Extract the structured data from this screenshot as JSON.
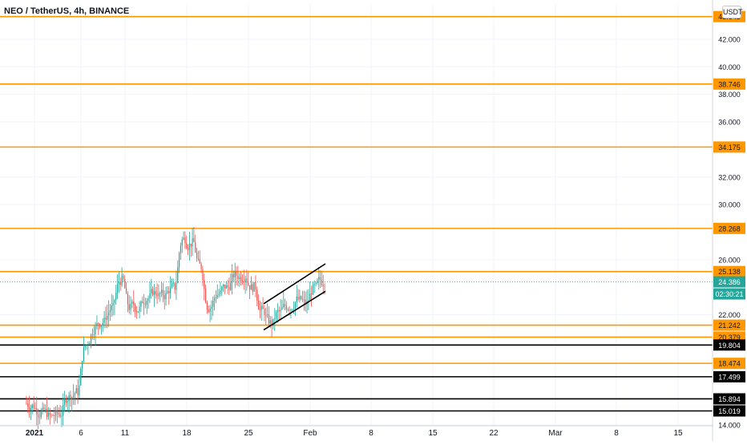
{
  "header": {
    "title": "NEO / TetherUS, 4h, BINANCE",
    "unit": "USDT"
  },
  "colors": {
    "level_line": "#ff9800",
    "support_line": "#000000",
    "current_price": "#26a69a",
    "up": "#26a69a",
    "down": "#ef5350",
    "grid": "#f0f3fa"
  },
  "chart_data": {
    "type": "candlestick",
    "title": "NEO / TetherUS, 4h, BINANCE",
    "xlabel": "",
    "ylabel": "",
    "ylim": [
      14.0,
      44.5
    ],
    "grid": true,
    "y_ticks": [
      "42.000",
      "40.000",
      "38.000",
      "36.000",
      "32.000",
      "30.000",
      "26.000",
      "22.000",
      "14.000"
    ],
    "x_ticks": [
      "2021",
      "6",
      "11",
      "18",
      "25",
      "Feb",
      "8",
      "15",
      "22",
      "Mar",
      "8",
      "15"
    ],
    "levels": [
      {
        "label": "43.643",
        "value": 43.643,
        "color": "#ff9800"
      },
      {
        "label": "38.746",
        "value": 38.746,
        "color": "#ff9800"
      },
      {
        "label": "34.175",
        "value": 34.175,
        "color": "#ff9800"
      },
      {
        "label": "28.268",
        "value": 28.268,
        "color": "#ff9800"
      },
      {
        "label": "25.138",
        "value": 25.138,
        "color": "#ff9800"
      },
      {
        "label": "21.242",
        "value": 21.242,
        "color": "#ff9800"
      },
      {
        "label": "20.379",
        "value": 20.379,
        "color": "#ff9800"
      },
      {
        "label": "19.804",
        "value": 19.804,
        "color": "#000000"
      },
      {
        "label": "18.474",
        "value": 18.474,
        "color": "#ff9800"
      },
      {
        "label": "17.499",
        "value": 17.499,
        "color": "#000000"
      },
      {
        "label": "15.894",
        "value": 15.894,
        "color": "#000000"
      },
      {
        "label": "15.019",
        "value": 15.019,
        "color": "#000000"
      }
    ],
    "current_price": {
      "label": "24.386",
      "value": 24.386,
      "countdown": "02:30:21"
    },
    "channel": [
      {
        "from": [
          "Jan 27",
          22.8
        ],
        "to": [
          "Feb 3",
          25.7
        ]
      },
      {
        "from": [
          "Jan 27",
          20.9
        ],
        "to": [
          "Feb 3",
          23.7
        ]
      }
    ],
    "series": [
      {
        "date": "Jan 1",
        "close": 15.4
      },
      {
        "date": "Jan 2",
        "close": 14.9
      },
      {
        "date": "Jan 3",
        "close": 14.6
      },
      {
        "date": "Jan 4",
        "close": 14.8
      },
      {
        "date": "Jan 5",
        "close": 16.0
      },
      {
        "date": "Jan 6",
        "close": 16.4
      },
      {
        "date": "Jan 7",
        "close": 19.8
      },
      {
        "date": "Jan 8",
        "close": 21.0
      },
      {
        "date": "Jan 9",
        "close": 21.5
      },
      {
        "date": "Jan 10",
        "close": 22.5
      },
      {
        "date": "Jan 11",
        "close": 24.5
      },
      {
        "date": "Jan 12",
        "close": 22.5
      },
      {
        "date": "Jan 13",
        "close": 22.4
      },
      {
        "date": "Jan 14",
        "close": 23.2
      },
      {
        "date": "Jan 15",
        "close": 23.6
      },
      {
        "date": "Jan 16",
        "close": 23.4
      },
      {
        "date": "Jan 17",
        "close": 24.0
      },
      {
        "date": "Jan 18",
        "close": 27.5
      },
      {
        "date": "Jan 19",
        "close": 27.2
      },
      {
        "date": "Jan 20",
        "close": 25.5
      },
      {
        "date": "Jan 21",
        "close": 22.5
      },
      {
        "date": "Jan 22",
        "close": 23.5
      },
      {
        "date": "Jan 23",
        "close": 24.0
      },
      {
        "date": "Jan 24",
        "close": 24.9
      },
      {
        "date": "Jan 25",
        "close": 24.8
      },
      {
        "date": "Jan 26",
        "close": 24.0
      },
      {
        "date": "Jan 27",
        "close": 22.3
      },
      {
        "date": "Jan 28",
        "close": 21.4
      },
      {
        "date": "Jan 29",
        "close": 22.2
      },
      {
        "date": "Jan 30",
        "close": 22.6
      },
      {
        "date": "Jan 31",
        "close": 23.1
      },
      {
        "date": "Feb 1",
        "close": 22.8
      },
      {
        "date": "Feb 2",
        "close": 24.0
      },
      {
        "date": "Feb 3",
        "close": 24.4
      }
    ]
  }
}
